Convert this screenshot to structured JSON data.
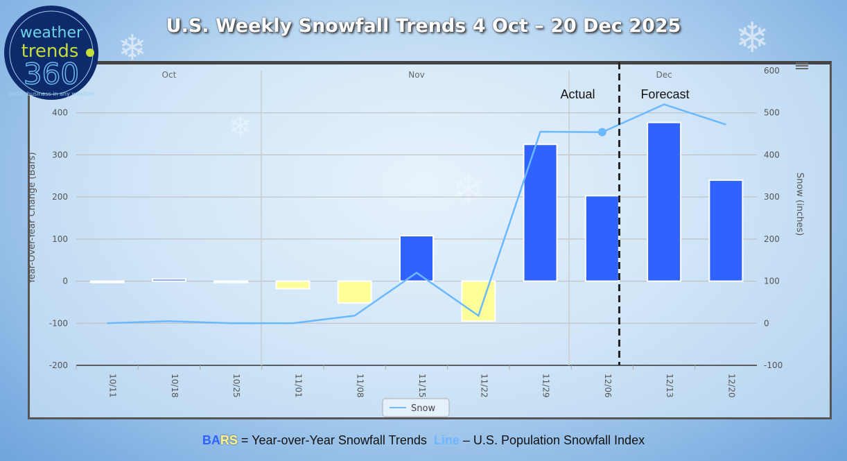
{
  "title": "U.S. Weekly Snowfall Trends 4 Oct – 20 Dec 2025",
  "logo": {
    "line1": "weather",
    "line2": "trends",
    "line3": "360",
    "tagline": "better business in any weather"
  },
  "menu_icon": "hamburger-menu-icon",
  "footer": {
    "bars_part1": "BA",
    "bars_part2": "RS",
    "bars_text": " = Year-over-Year Snowfall Trends  ",
    "line_label": "Line",
    "line_text": " – U.S. Population Snowfall Index"
  },
  "colors": {
    "positive_bar": "#2f62ff",
    "negative_bar": "#ffff99",
    "line": "#6cb8ff"
  },
  "chart_data": {
    "type": "bar+line",
    "categories": [
      "10/11",
      "10/18",
      "10/25",
      "11/01",
      "11/08",
      "11/15",
      "11/22",
      "11/29",
      "12/06",
      "12/13",
      "12/20"
    ],
    "months": [
      {
        "label": "Oct",
        "at": "10/18"
      },
      {
        "label": "Nov",
        "at": "11/15"
      },
      {
        "label": "Dec",
        "at": "12/13"
      }
    ],
    "series": [
      {
        "type": "bar",
        "axis": "left",
        "values": [
          0,
          5,
          0,
          -18,
          -52,
          108,
          -95,
          325,
          203,
          377,
          240
        ]
      },
      {
        "name": "Snow",
        "type": "line",
        "axis": "right",
        "values": [
          0,
          5,
          0,
          0,
          18,
          120,
          18,
          455,
          454,
          520,
          472
        ]
      }
    ],
    "ylabel": "Year-Over-Year Change (Bars)",
    "y2label": "Snow (inches)",
    "ylim": [
      -200,
      500
    ],
    "y2lim": [
      -100,
      600
    ],
    "yticks": [
      -200,
      -100,
      0,
      100,
      200,
      300,
      400
    ],
    "y2ticks": [
      -100,
      0,
      100,
      200,
      300,
      400,
      500,
      600
    ],
    "annotations": {
      "actual": "Actual",
      "forecast": "Forecast",
      "divider_between": [
        "12/06",
        "12/13"
      ]
    },
    "legend": {
      "position": "bottom",
      "entries": [
        "Snow"
      ]
    },
    "grid": true
  }
}
